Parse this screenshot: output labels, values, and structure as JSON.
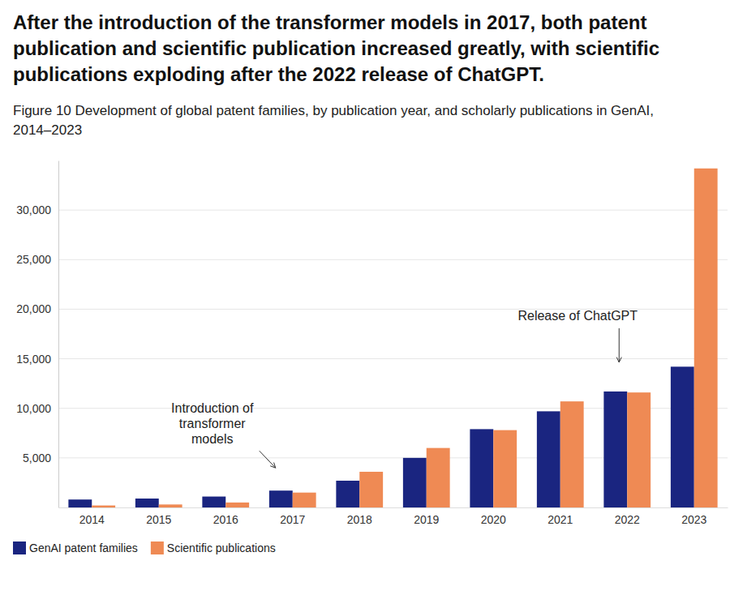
{
  "chart_data": {
    "type": "bar",
    "title": "After the introduction of the transformer models in 2017, both patent publication and scientific publication increased greatly, with scientific publications exploding after the 2022 release of ChatGPT.",
    "subtitle": "Figure 10 Development of global patent families, by publication year, and scholarly publications in GenAI, 2014–2023",
    "categories": [
      "2014",
      "2015",
      "2016",
      "2017",
      "2018",
      "2019",
      "2020",
      "2021",
      "2022",
      "2023"
    ],
    "series": [
      {
        "name": "GenAI patent families",
        "color": "#1a2580",
        "values": [
          800,
          900,
          1100,
          1700,
          2700,
          5000,
          7900,
          9700,
          11700,
          14200
        ]
      },
      {
        "name": "Scientific publications",
        "color": "#ef8a54",
        "values": [
          200,
          300,
          500,
          1500,
          3600,
          6000,
          7800,
          10700,
          11600,
          34200
        ]
      }
    ],
    "ylim": [
      0,
      35000
    ],
    "yticks": [
      {
        "value": 5000,
        "label": "5,000"
      },
      {
        "value": 10000,
        "label": "10,000"
      },
      {
        "value": 15000,
        "label": "15,000"
      },
      {
        "value": 20000,
        "label": "20,000"
      },
      {
        "value": 25000,
        "label": "25,000"
      },
      {
        "value": 30000,
        "label": "30,000"
      }
    ],
    "grid": true,
    "legend": "bottom-left",
    "annotations": [
      {
        "text": [
          "Introduction of",
          "transformer",
          "models"
        ],
        "x": "2017"
      },
      {
        "text": [
          "Release of ChatGPT"
        ],
        "x": "2022"
      }
    ]
  }
}
